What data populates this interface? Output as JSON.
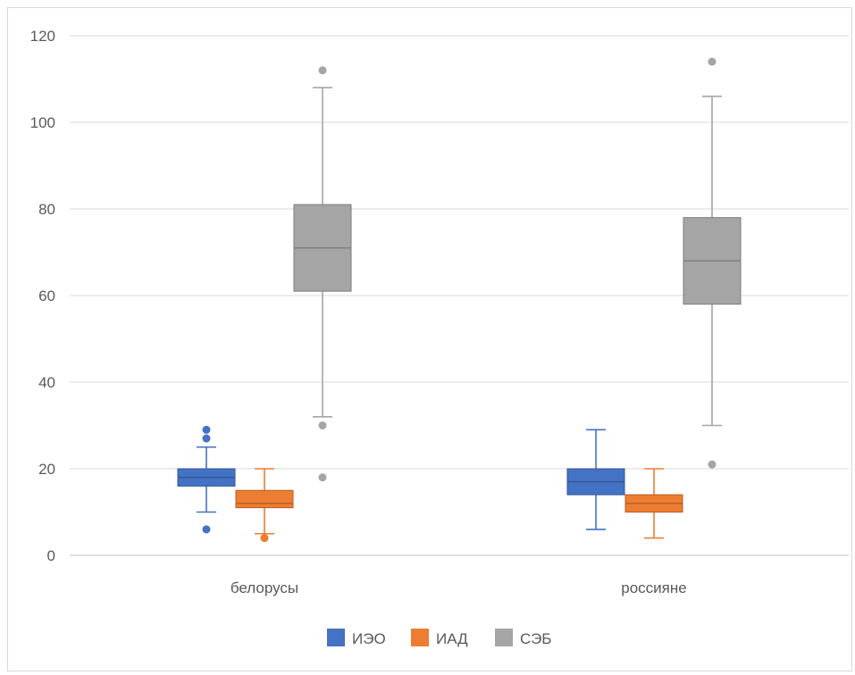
{
  "chart_data": {
    "type": "boxplot",
    "title": "",
    "xlabel": "",
    "ylabel": "",
    "ylim": [
      0,
      120
    ],
    "y_ticks": [
      "0",
      "20",
      "40",
      "60",
      "80",
      "100",
      "120"
    ],
    "grid": true,
    "legend_position": "bottom",
    "categories": [
      "белорусы",
      "россияне"
    ],
    "series": [
      {
        "name": "ИЭО",
        "color": "#4472c4",
        "boxes": [
          {
            "min": 10,
            "q1": 16,
            "median": 18,
            "q3": 20,
            "max": 25,
            "outliers": [
              29,
              27,
              6
            ]
          },
          {
            "min": 6,
            "q1": 14,
            "median": 17,
            "q3": 20,
            "max": 29,
            "outliers": []
          }
        ]
      },
      {
        "name": "ИАД",
        "color": "#ed7d31",
        "boxes": [
          {
            "min": 5,
            "q1": 11,
            "median": 12,
            "q3": 15,
            "max": 20,
            "outliers": [
              4
            ]
          },
          {
            "min": 4,
            "q1": 10,
            "median": 12,
            "q3": 14,
            "max": 20,
            "outliers": []
          }
        ]
      },
      {
        "name": "СЭБ",
        "color": "#a5a5a5",
        "boxes": [
          {
            "min": 32,
            "q1": 61,
            "median": 71,
            "q3": 81,
            "max": 108,
            "outliers": [
              112,
              30,
              18
            ]
          },
          {
            "min": 30,
            "q1": 58,
            "median": 68,
            "q3": 78,
            "max": 106,
            "outliers": [
              114,
              21
            ]
          }
        ]
      }
    ]
  }
}
